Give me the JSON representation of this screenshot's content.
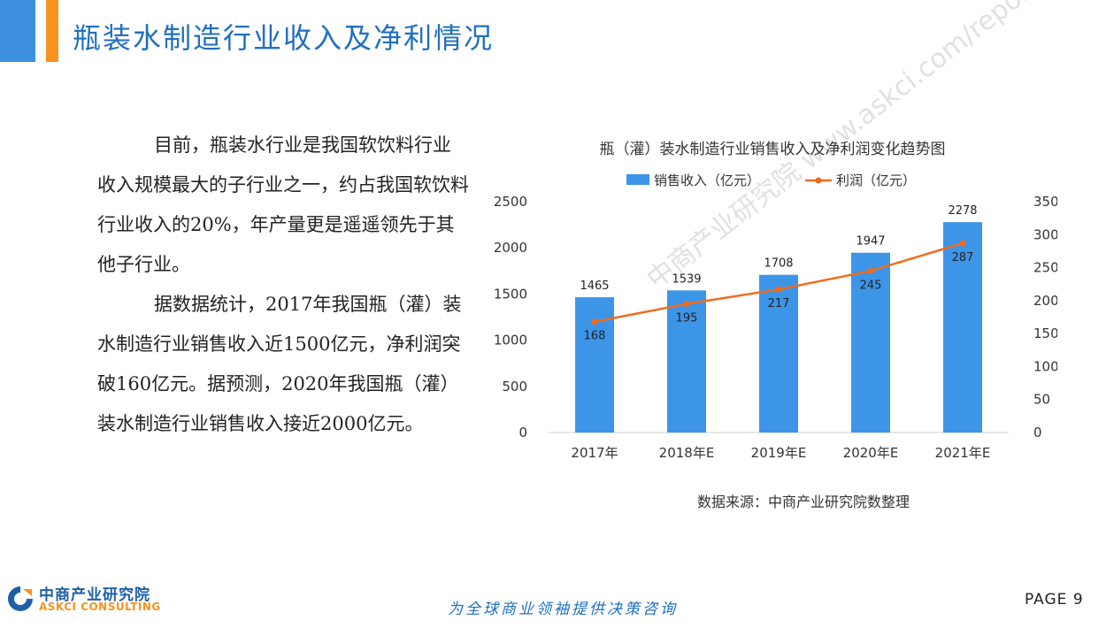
{
  "header": {
    "title": "瓶装水制造行业收入及净利情况"
  },
  "body": {
    "paragraphs": [
      "目前，瓶装水行业是我国软饮料行业收入规模最大的子行业之一，约占我国软饮料行业收入的20%，年产量更是遥遥领先于其他子行业。",
      "据数据统计，2017年我国瓶（灌）装水制造行业销售收入近1500亿元，净利润突破160亿元。据预测，2020年我国瓶（灌）装水制造行业销售收入接近2000亿元。"
    ]
  },
  "chart_data": {
    "type": "bar",
    "title": "瓶（灌）装水制造行业销售收入及净利润变化趋势图",
    "categories": [
      "2017年",
      "2018年E",
      "2019年E",
      "2020年E",
      "2021年E"
    ],
    "series": [
      {
        "name": "销售收入（亿元）",
        "type": "bar",
        "axis": "left",
        "values": [
          1465,
          1539,
          1708,
          1947,
          2278
        ],
        "color": "#3d95e8"
      },
      {
        "name": "利润（亿元）",
        "type": "line",
        "axis": "right",
        "values": [
          168,
          195,
          217,
          245,
          287
        ],
        "color": "#f26b1d"
      }
    ],
    "y_left": {
      "ylim": [
        0,
        2500
      ],
      "ticks": [
        0,
        500,
        1000,
        1500,
        2000,
        2500
      ]
    },
    "y_right": {
      "ylim": [
        0,
        350
      ],
      "ticks": [
        0,
        50,
        100,
        150,
        200,
        250,
        300,
        350
      ]
    },
    "legend_position": "top",
    "grid": false
  },
  "source": "数据来源：中商产业研究院数整理",
  "footer": {
    "logo_cn": "中商产业研究院",
    "logo_en": "ASKCI CONSULTING",
    "slogan": "为全球商业领袖提供决策咨询",
    "page": "PAGE  9"
  },
  "watermark": "中商产业研究院 www.askci.com/reports"
}
